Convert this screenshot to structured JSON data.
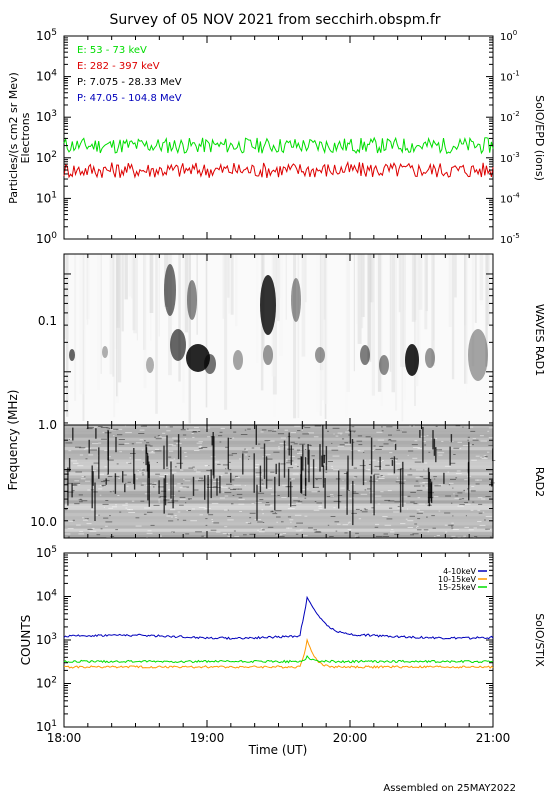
{
  "title": "Survey of 05 NOV 2021 from secchirh.obspm.fr",
  "footer": "Assembled on 25MAY2022",
  "chart_data": [
    {
      "type": "line",
      "panel": "SolO/EPD",
      "ylabel": "Particles/(s cm2 sr Mev)",
      "ylabel2": "Electrons",
      "right_label": "SolO/EPD (ions)",
      "yscale": "log",
      "ylim": [
        1,
        100000
      ],
      "y_ticks": [
        "10^0",
        "10^1",
        "10^2",
        "10^3",
        "10^4",
        "10^5"
      ],
      "y2lim": [
        1e-05,
        1
      ],
      "y2_ticks": [
        "10^-5",
        "10^-4",
        "10^-3",
        "10^-2",
        "10^-1",
        "10^0"
      ],
      "xlim": [
        "18:00",
        "21:00"
      ],
      "legend_position": "top-left",
      "legend": [
        {
          "label": "E: 53 - 73 keV",
          "color": "#00dd00"
        },
        {
          "label": "E: 282 - 397 keV",
          "color": "#dd0000"
        },
        {
          "label": "P: 7.075 - 28.33 MeV",
          "color": "#000000"
        },
        {
          "label": "P: 47.05 - 104.8 MeV",
          "color": "#0000bb"
        }
      ],
      "series": [
        {
          "name": "E: 53 - 73 keV",
          "color": "#00dd00",
          "typical_value": 200,
          "range": [
            100,
            400
          ]
        },
        {
          "name": "E: 282 - 397 keV",
          "color": "#dd0000",
          "typical_value": 50,
          "range": [
            20,
            90
          ]
        }
      ]
    },
    {
      "type": "heatmap",
      "panel": "WAVES RAD1",
      "right_label": "WAVES RAD1",
      "ylabel": "Frequency (MHz)",
      "yscale": "log",
      "y_ticks": [
        "0.1",
        "1.0"
      ],
      "colormap": "white-to-black"
    },
    {
      "type": "heatmap",
      "panel": "RAD2",
      "right_label": "RAD2",
      "yscale": "log",
      "y_ticks": [
        "1.0",
        "10.0"
      ],
      "colormap": "white-to-black"
    },
    {
      "type": "line",
      "panel": "SolO/STIX",
      "ylabel": "COUNTS",
      "right_label": "SolO/STIX",
      "yscale": "log",
      "ylim": [
        10,
        100000
      ],
      "y_ticks": [
        "10^1",
        "10^2",
        "10^3",
        "10^4",
        "10^5"
      ],
      "xlabel": "Time (UT)",
      "xlim": [
        "18:00",
        "21:00"
      ],
      "x_ticks": [
        "18:00",
        "19:00",
        "20:00",
        "21:00"
      ],
      "legend_position": "top-right",
      "legend": [
        {
          "label": "4-10keV",
          "color": "#0000bb"
        },
        {
          "label": "10-15keV",
          "color": "#ff9900"
        },
        {
          "label": "15-25keV",
          "color": "#00dd00"
        }
      ],
      "flare_peak_time": "19:42",
      "series": [
        {
          "name": "4-10keV",
          "color": "#0000bb",
          "baseline": 1200,
          "peak": 9500
        },
        {
          "name": "10-15keV",
          "color": "#ff9900",
          "baseline": 240,
          "peak": 1000
        },
        {
          "name": "15-25keV",
          "color": "#00dd00",
          "baseline": 320,
          "peak": 420
        }
      ]
    }
  ]
}
